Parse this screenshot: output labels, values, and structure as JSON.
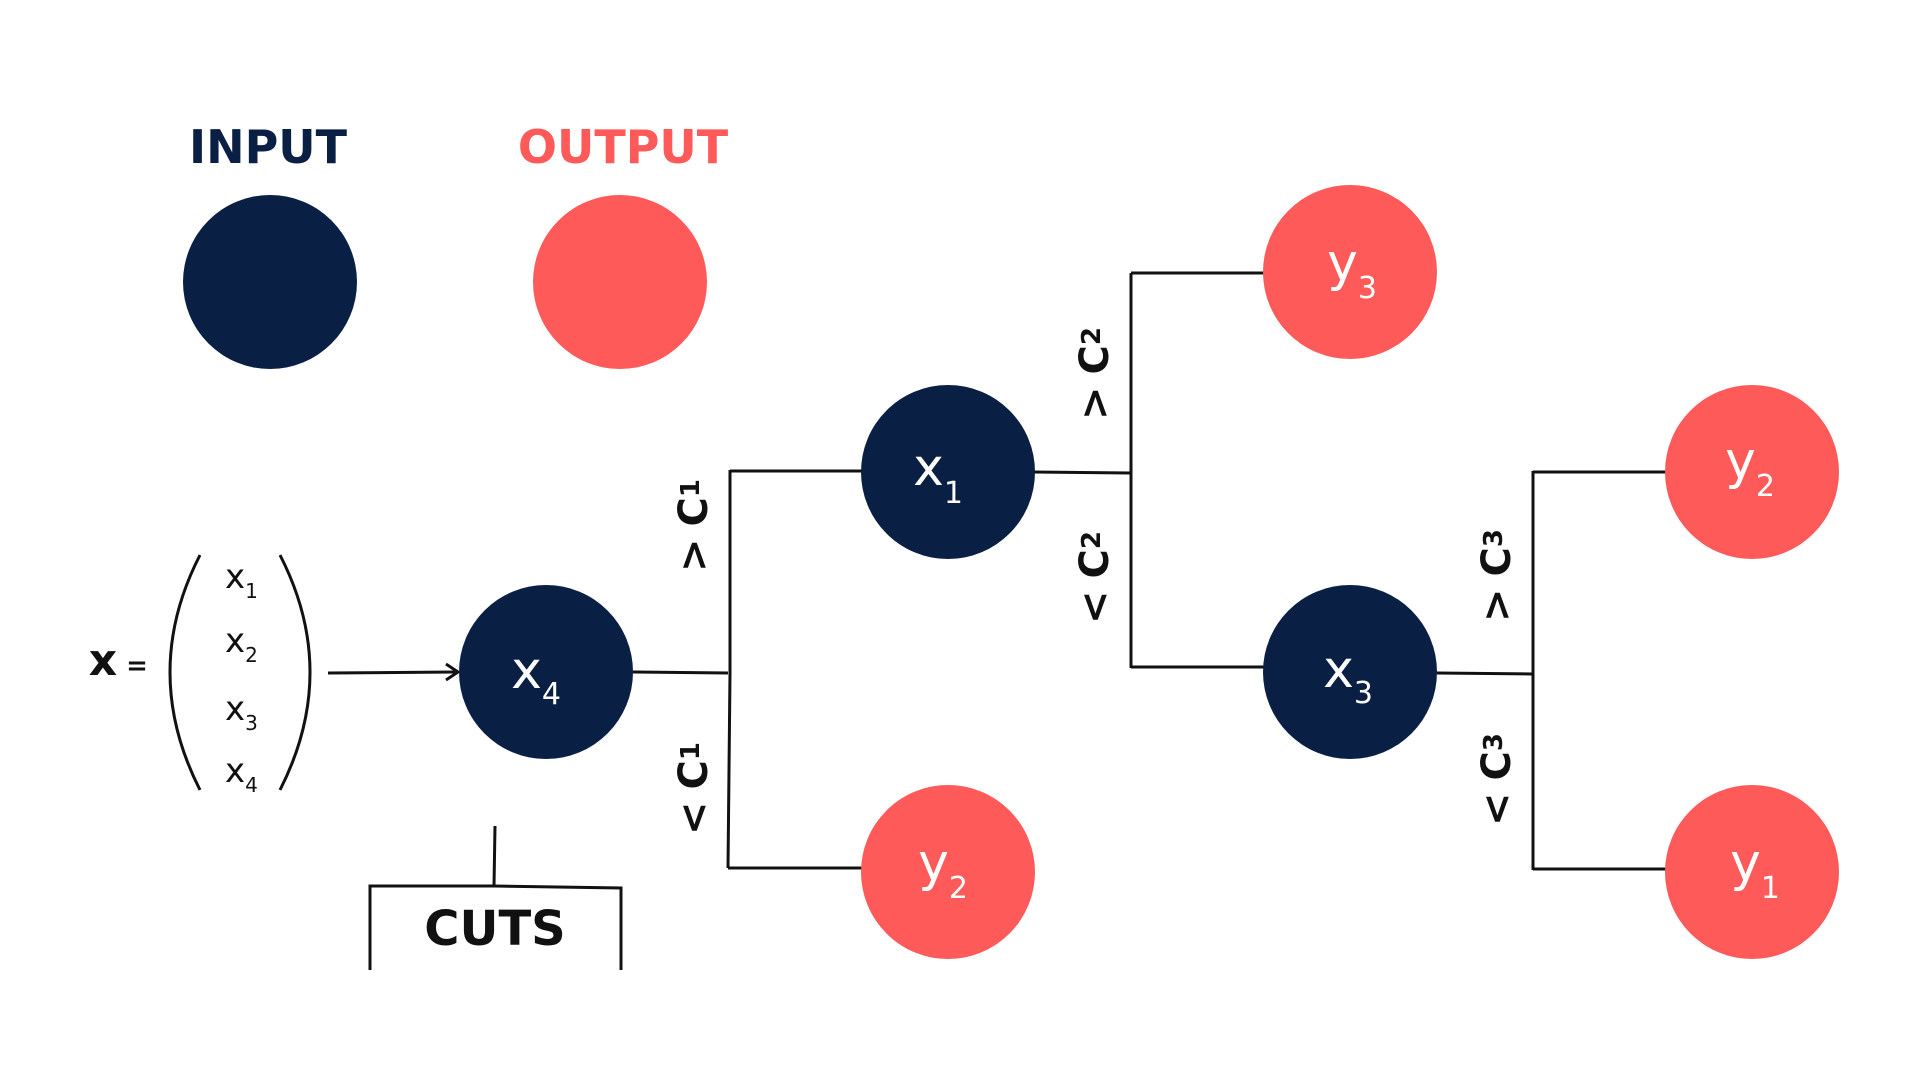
{
  "colors": {
    "input": "#0a1f44",
    "output": "#ff5a5a",
    "line": "#111111"
  },
  "legend": {
    "input_label": "INPUT",
    "output_label": "OUTPUT"
  },
  "vector": {
    "symbol": "x",
    "equals": "=",
    "items": [
      {
        "base": "x",
        "sub": "1"
      },
      {
        "base": "x",
        "sub": "2"
      },
      {
        "base": "x",
        "sub": "3"
      },
      {
        "base": "x",
        "sub": "4"
      }
    ]
  },
  "cuts_label": "CUTS",
  "nodes": {
    "root": {
      "base": "x",
      "sub": "4",
      "kind": "input"
    },
    "n1": {
      "base": "x",
      "sub": "1",
      "kind": "input"
    },
    "leaf_y2_a": {
      "base": "y",
      "sub": "2",
      "kind": "output"
    },
    "leaf_y3": {
      "base": "y",
      "sub": "3",
      "kind": "output"
    },
    "n3": {
      "base": "x",
      "sub": "3",
      "kind": "input"
    },
    "leaf_y2_b": {
      "base": "y",
      "sub": "2",
      "kind": "output"
    },
    "leaf_y1": {
      "base": "y",
      "sub": "1",
      "kind": "output"
    }
  },
  "conditions": {
    "c1_gt": {
      "op": ">",
      "base": "C",
      "sub": "1"
    },
    "c1_lt": {
      "op": "<",
      "base": "C",
      "sub": "1"
    },
    "c2_gt": {
      "op": ">",
      "base": "C",
      "sub": "2"
    },
    "c2_lt": {
      "op": "<",
      "base": "C",
      "sub": "2"
    },
    "c3_gt": {
      "op": ">",
      "base": "C",
      "sub": "3"
    },
    "c3_lt": {
      "op": "<",
      "base": "C",
      "sub": "3"
    }
  }
}
